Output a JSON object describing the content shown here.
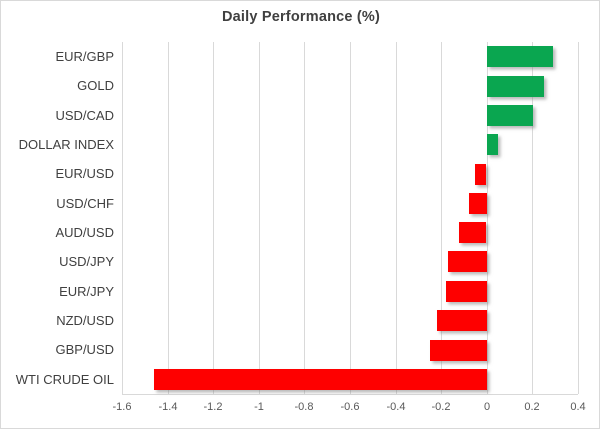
{
  "chart_data": {
    "type": "bar",
    "orientation": "horizontal",
    "title": "Daily Performance (%)",
    "categories": [
      "EUR/GBP",
      "GOLD",
      "USD/CAD",
      "DOLLAR INDEX",
      "EUR/USD",
      "USD/CHF",
      "AUD/USD",
      "USD/JPY",
      "EUR/JPY",
      "NZD/USD",
      "GBP/USD",
      "WTI CRUDE OIL"
    ],
    "values": [
      0.29,
      0.25,
      0.2,
      0.05,
      -0.05,
      -0.08,
      -0.12,
      -0.17,
      -0.18,
      -0.22,
      -0.25,
      -1.46
    ],
    "xlim": [
      -1.6,
      0.4
    ],
    "xticks": [
      -1.6,
      -1.4,
      -1.2,
      -1,
      -0.8,
      -0.6,
      -0.4,
      -0.2,
      0,
      0.2,
      0.4
    ],
    "xtick_labels": [
      "-1.6",
      "-1.4",
      "-1.2",
      "-1",
      "-0.8",
      "-0.6",
      "-0.4",
      "-0.2",
      "0",
      "0.2",
      "0.4"
    ],
    "grid": true,
    "legend_position": "none",
    "xlabel": "",
    "ylabel": "",
    "positive_color": "#0aa650",
    "negative_color": "#fe0000",
    "gridline_color": "#d9d9d9",
    "title_color": "#404040",
    "category_label_color": "#404040",
    "tick_label_color": "#595959"
  }
}
